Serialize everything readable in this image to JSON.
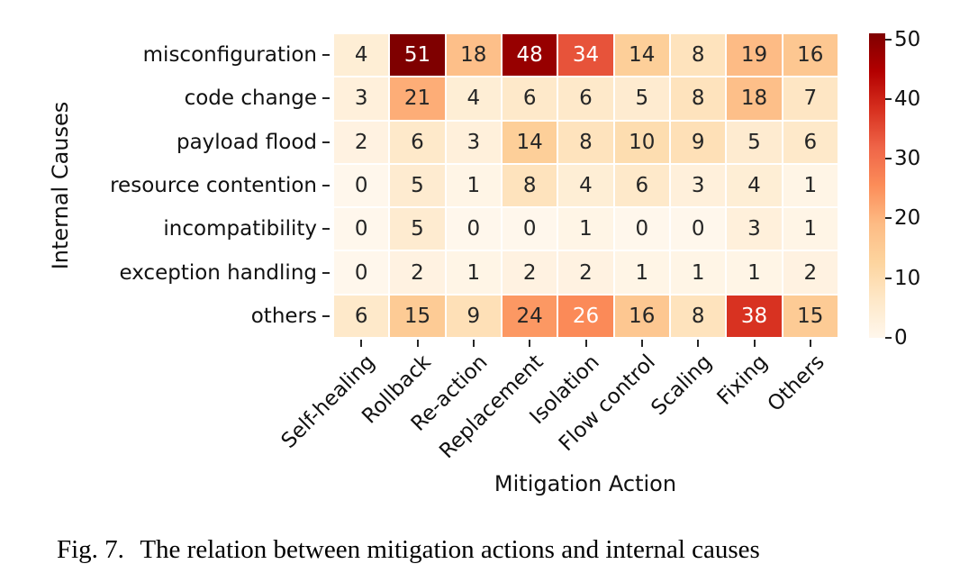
{
  "chart_data": {
    "type": "heatmap",
    "xlabel": "Mitigation Action",
    "ylabel": "Internal Causes",
    "columns": [
      "Self-healing",
      "Rollback",
      "Re-action",
      "Replacement",
      "Isolation",
      "Flow control",
      "Scaling",
      "Fixing",
      "Others"
    ],
    "rows": [
      "misconfiguration",
      "code change",
      "payload flood",
      "resource contention",
      "incompatibility",
      "exception handling",
      "others"
    ],
    "values": [
      [
        4,
        51,
        18,
        48,
        34,
        14,
        8,
        19,
        16
      ],
      [
        3,
        21,
        4,
        6,
        6,
        5,
        8,
        18,
        7
      ],
      [
        2,
        6,
        3,
        14,
        8,
        10,
        9,
        5,
        6
      ],
      [
        0,
        5,
        1,
        8,
        4,
        6,
        3,
        4,
        1
      ],
      [
        0,
        5,
        0,
        0,
        1,
        0,
        0,
        3,
        1
      ],
      [
        0,
        2,
        1,
        2,
        2,
        1,
        1,
        1,
        2
      ],
      [
        6,
        15,
        9,
        24,
        26,
        16,
        8,
        38,
        15
      ]
    ],
    "vmin": 0,
    "vmax": 51,
    "colormap": {
      "name": "OrRd",
      "stops": [
        "#fff7ec",
        "#fee8c8",
        "#fdd49e",
        "#fdbb84",
        "#fc8d59",
        "#ef6548",
        "#d7301f",
        "#b30000",
        "#7f0000"
      ]
    },
    "colorbar_ticks": [
      0,
      10,
      20,
      30,
      40,
      50
    ],
    "annot_dark_color": "#262626",
    "annot_light_color": "#ffffff",
    "legend_position": "right",
    "grid": false
  },
  "caption": {
    "label": "Fig. 7.",
    "text": "The relation between mitigation actions and internal causes"
  }
}
